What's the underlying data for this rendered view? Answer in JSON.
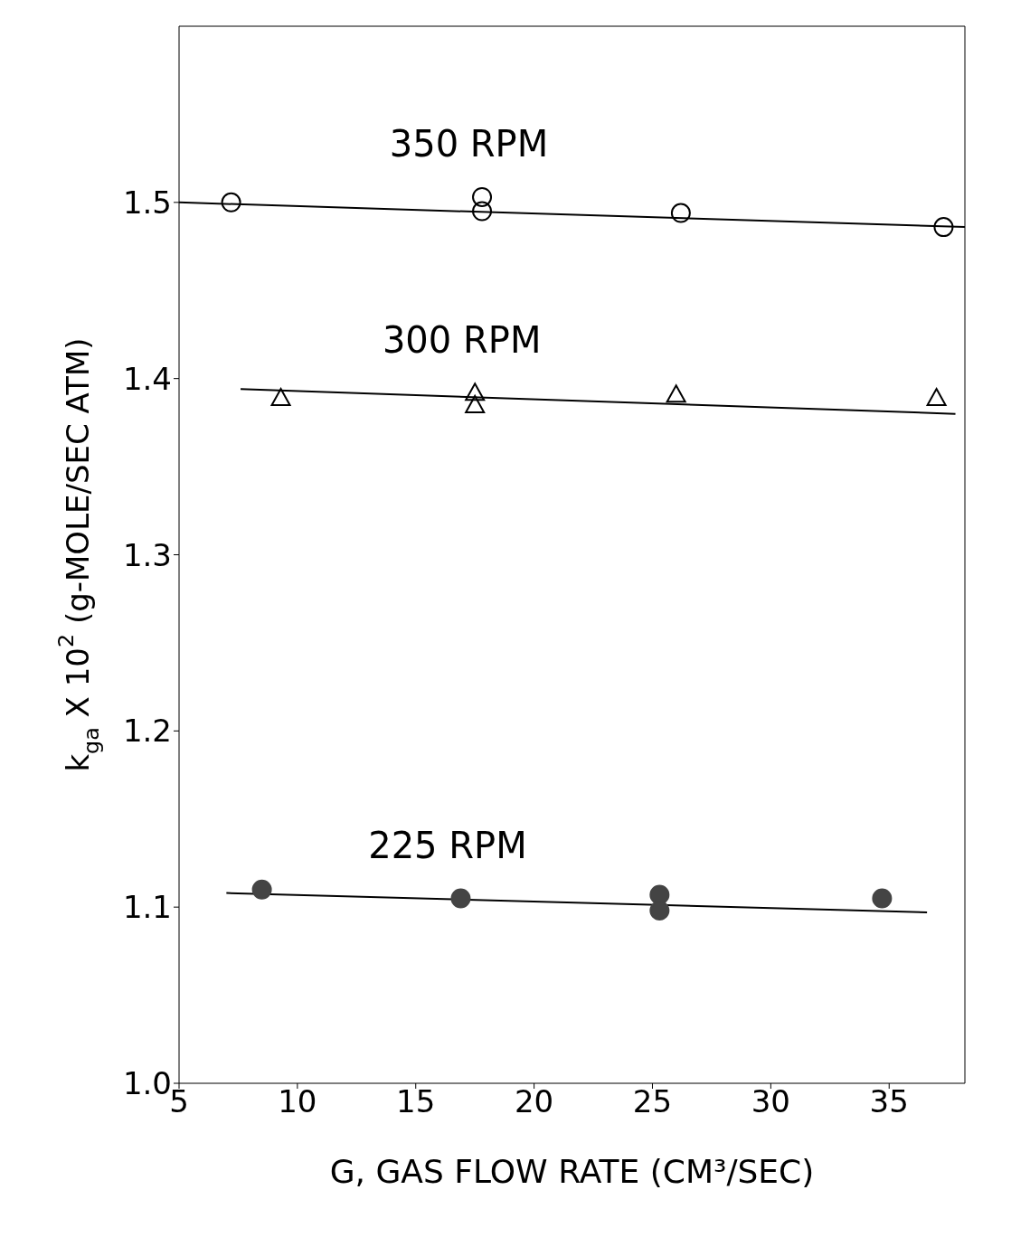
{
  "chart_data": {
    "type": "scatter",
    "xlabel": "G, GAS FLOW RATE (CM³/SEC)",
    "ylabel": "k$_{ga}$ X 10$^{2}$ (g-MOLE/SEC ATM)",
    "xlim": [
      5,
      38.2
    ],
    "xticks": [
      5,
      10,
      15,
      20,
      25,
      30,
      35
    ],
    "ylim": [
      1.0,
      1.6
    ],
    "yticks": [
      {
        "value": 1.0,
        "label": "1.0"
      },
      1.1,
      1.2,
      1.3,
      1.4,
      1.5
    ],
    "grid": false,
    "legend": false,
    "series": [
      {
        "name": "350 RPM",
        "marker": "circle",
        "color": "#000000",
        "x": [
          7.2,
          17.8,
          17.8,
          26.2,
          37.3
        ],
        "values": [
          1.5,
          1.503,
          1.495,
          1.494,
          1.486
        ]
      },
      {
        "name": "300 RPM",
        "marker": "triangle",
        "color": "#000000",
        "x": [
          9.3,
          17.5,
          17.5,
          26,
          37
        ],
        "values": [
          1.389,
          1.392,
          1.385,
          1.391,
          1.389
        ]
      },
      {
        "name": "225 RPM",
        "marker": "circle",
        "color": "#444444",
        "x": [
          8.5,
          16.9,
          25.3,
          25.3,
          34.7
        ],
        "values": [
          1.11,
          1.105,
          1.107,
          1.098,
          1.105
        ]
      },
      {
        "type": "line",
        "marker": "none",
        "color": "#000000",
        "x": [
          5,
          38.2
        ],
        "values": [
          1.5,
          1.486
        ]
      },
      {
        "type": "line",
        "marker": "none",
        "color": "#000000",
        "x": [
          7.6,
          37.8
        ],
        "values": [
          1.394,
          1.38
        ]
      },
      {
        "type": "line",
        "marker": "none",
        "color": "#000000",
        "x": [
          7,
          36.6
        ],
        "values": [
          1.108,
          1.097
        ]
      }
    ]
  }
}
